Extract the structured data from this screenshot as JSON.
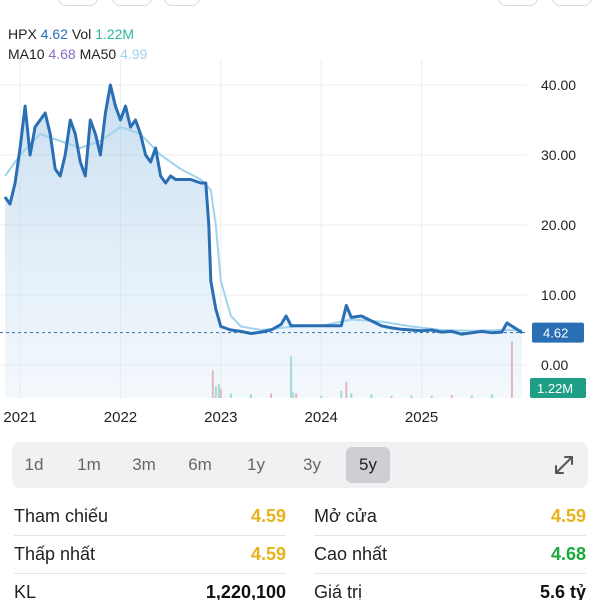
{
  "legend": {
    "symbol": "HPX",
    "price": "4.62",
    "vol_label": "Vol",
    "vol": "1.22M",
    "ma10_label": "MA10",
    "ma10": "4.68",
    "ma50_label": "MA50",
    "ma50": "4.99"
  },
  "colors": {
    "price": "#2a6fb3",
    "volume": "#29b89b",
    "ma10": "#8a6cc0",
    "ma50": "#9fd3ee",
    "positive": "#1aaa3a",
    "reference": "#e8b21a"
  },
  "chart_data": {
    "type": "line",
    "y_ticks": [
      "40.00",
      "30.00",
      "20.00",
      "10.00",
      "0.00"
    ],
    "x_ticks": [
      "2021",
      "2022",
      "2023",
      "2024",
      "2025"
    ],
    "ylim": [
      0,
      43
    ],
    "price_tag": "4.62",
    "volume_tag": "1.22M",
    "series": [
      {
        "name": "HPX",
        "x": [
          2020.85,
          2020.9,
          2020.95,
          2021.0,
          2021.05,
          2021.1,
          2021.15,
          2021.2,
          2021.25,
          2021.3,
          2021.35,
          2021.4,
          2021.45,
          2021.5,
          2021.55,
          2021.6,
          2021.65,
          2021.7,
          2021.75,
          2021.8,
          2021.85,
          2021.9,
          2021.95,
          2022.0,
          2022.05,
          2022.1,
          2022.15,
          2022.2,
          2022.25,
          2022.3,
          2022.35,
          2022.4,
          2022.45,
          2022.5,
          2022.55,
          2022.6,
          2022.7,
          2022.8,
          2022.85,
          2022.88,
          2022.9,
          2022.95,
          2023.0,
          2023.1,
          2023.2,
          2023.3,
          2023.4,
          2023.5,
          2023.6,
          2023.65,
          2023.7,
          2023.8,
          2023.9,
          2024.0,
          2024.1,
          2024.2,
          2024.25,
          2024.3,
          2024.4,
          2024.5,
          2024.6,
          2024.7,
          2024.8,
          2024.9,
          2025.0,
          2025.1,
          2025.2,
          2025.3,
          2025.4,
          2025.5,
          2025.6,
          2025.7,
          2025.8,
          2025.85,
          2025.95,
          2026.0
        ],
        "values": [
          24,
          23,
          26,
          31,
          37,
          30,
          34,
          35,
          36,
          33,
          28,
          27,
          30,
          35,
          33,
          29,
          27,
          35,
          33,
          30,
          36,
          40,
          37,
          35,
          37,
          34,
          35,
          33,
          30,
          29,
          31,
          27,
          26,
          27,
          26.5,
          26.5,
          26.5,
          26,
          26,
          20,
          12,
          8,
          5.5,
          5,
          4.8,
          4.5,
          4.7,
          5,
          5.8,
          7,
          5.6,
          5.6,
          5.6,
          5.6,
          5.6,
          5.6,
          8.5,
          6.8,
          7,
          6.3,
          5.6,
          5.3,
          5.1,
          5,
          4.9,
          5,
          4.7,
          4.8,
          4.4,
          4.6,
          4.8,
          4.6,
          4.7,
          6,
          5.1,
          4.62
        ]
      },
      {
        "name": "MA50",
        "x": [
          2020.85,
          2021.0,
          2021.2,
          2021.4,
          2021.6,
          2021.8,
          2022.0,
          2022.2,
          2022.4,
          2022.6,
          2022.8,
          2022.9,
          2022.95,
          2023.0,
          2023.1,
          2023.2,
          2023.4,
          2023.6,
          2023.8,
          2024.0,
          2024.3,
          2024.6,
          2024.9,
          2025.2,
          2025.5,
          2025.8,
          2026.0
        ],
        "values": [
          27,
          30,
          33,
          32,
          31,
          32,
          34,
          33,
          30,
          28,
          26.5,
          25,
          20,
          12,
          7,
          5.5,
          5,
          5.3,
          5.6,
          5.6,
          6.5,
          6.2,
          5.5,
          5,
          4.9,
          5,
          4.99
        ]
      }
    ],
    "volume": {
      "x": [
        2022.92,
        2022.95,
        2022.98,
        2023.0,
        2023.1,
        2023.3,
        2023.5,
        2023.7,
        2023.72,
        2023.75,
        2024.0,
        2024.2,
        2024.25,
        2024.3,
        2024.5,
        2024.7,
        2024.9,
        2025.1,
        2025.3,
        2025.5,
        2025.7,
        2025.9
      ],
      "values": [
        0.6,
        0.25,
        0.3,
        0.2,
        0.1,
        0.08,
        0.1,
        0.9,
        0.12,
        0.1,
        0.05,
        0.15,
        0.35,
        0.1,
        0.08,
        0.05,
        0.06,
        0.05,
        0.07,
        0.06,
        0.08,
        1.22
      ]
    }
  },
  "ranges": {
    "items": [
      "1d",
      "1m",
      "3m",
      "6m",
      "1y",
      "3y",
      "5y"
    ],
    "active": "5y"
  },
  "stats": {
    "ref_label": "Tham chiếu",
    "ref_value": "4.59",
    "open_label": "Mở cửa",
    "open_value": "4.59",
    "low_label": "Thấp nhất",
    "low_value": "4.59",
    "high_label": "Cao nhất",
    "high_value": "4.68",
    "kl_label": "KL",
    "kl_value": "1,220,100",
    "gt_label": "Giá trị",
    "gt_value": "5.6 tỷ"
  }
}
